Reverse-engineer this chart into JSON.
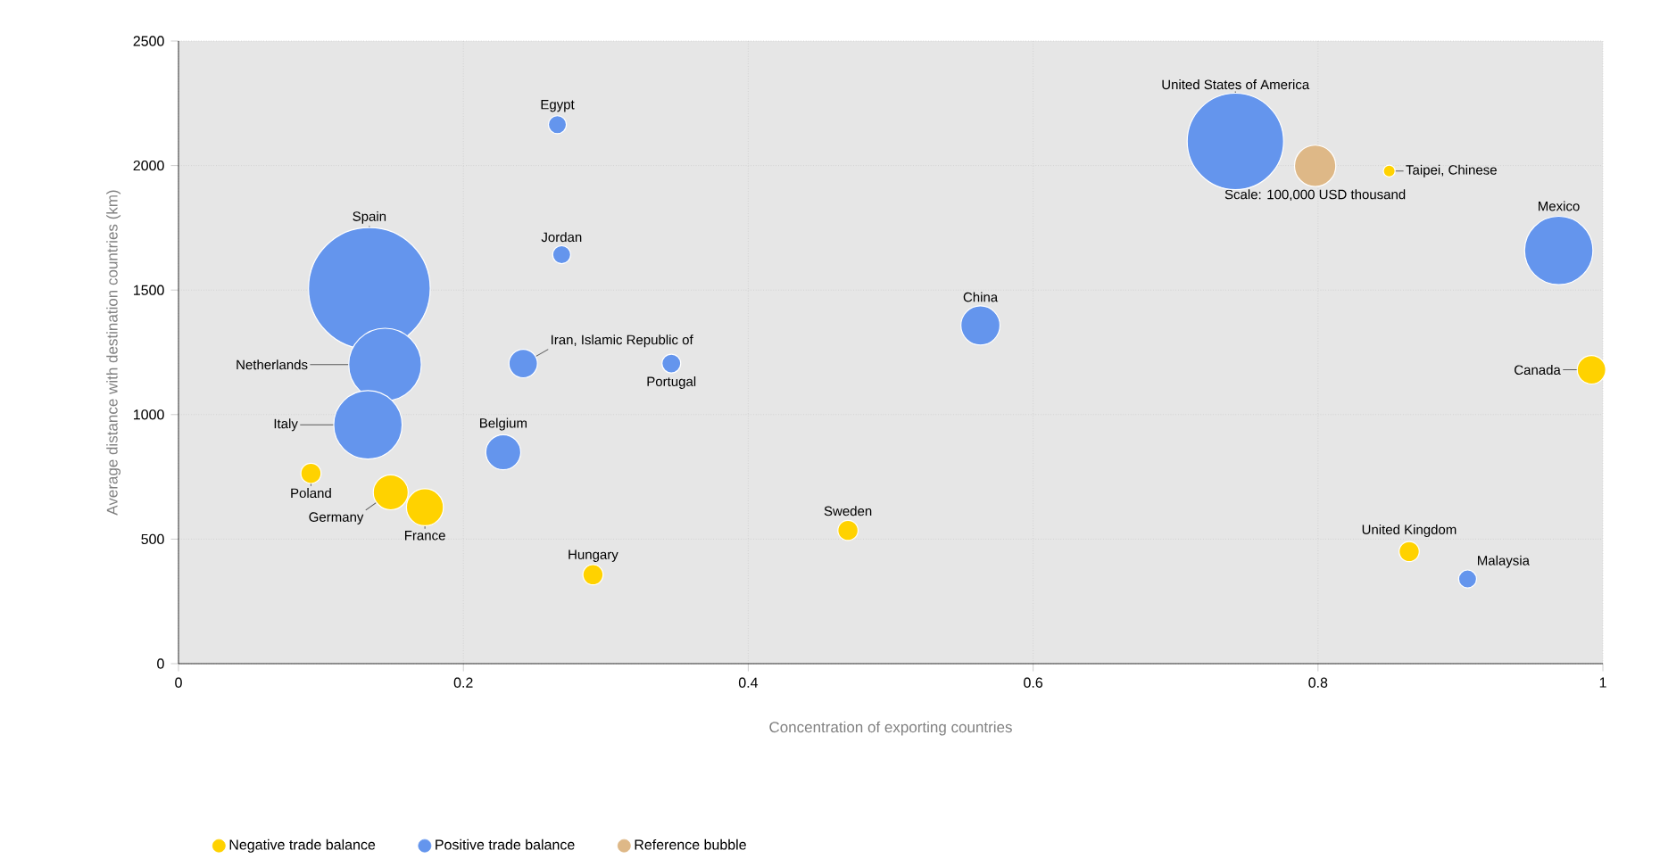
{
  "chart_data": {
    "type": "bubble",
    "xlabel": "Concentration of exporting countries",
    "ylabel": "Average distance with destination countries (km)",
    "xlim": [
      0,
      1
    ],
    "ylim": [
      0,
      2500
    ],
    "xticks": [
      0,
      0.2,
      0.4,
      0.6,
      0.8,
      1
    ],
    "yticks": [
      0,
      500,
      1000,
      1500,
      2000,
      2500
    ],
    "grid": true,
    "legend": "bottom",
    "series": [
      {
        "name": "Negative trade balance",
        "color": "#ffd200",
        "x": [
          0.173,
          0.149,
          0.992,
          0.093,
          0.291,
          0.47,
          0.864,
          0.85
        ],
        "values": [
          628,
          688,
          1180,
          764,
          357,
          535,
          450,
          1978
        ],
        "sizes": [
          0.096,
          0.086,
          0.058,
          0.03,
          0.03,
          0.03,
          0.03,
          0.011
        ]
      },
      {
        "name": "Positive trade balance",
        "color": "#6495ed",
        "x": [
          0.134,
          0.742,
          0.145,
          0.969,
          0.133,
          0.563,
          0.228,
          0.242,
          0.266,
          0.269,
          0.346,
          0.905
        ],
        "values": [
          1507,
          2097,
          1201,
          1659,
          959,
          1358,
          849,
          1205,
          2164,
          1642,
          1205,
          340
        ],
        "sizes": [
          1,
          0.63,
          0.36,
          0.32,
          0.32,
          0.107,
          0.086,
          0.058,
          0.024,
          0.024,
          0.026,
          0.024
        ]
      },
      {
        "name": "Reference bubble",
        "color": "#deb887",
        "x": [
          0.798
        ],
        "values": [
          1999
        ],
        "sizes": [
          0.119
        ]
      }
    ],
    "annotations": [
      {
        "text": "France",
        "x": 0.173,
        "y": 628
      },
      {
        "text": "Germany",
        "x": 0.149,
        "y": 688
      },
      {
        "text": "Canada",
        "x": 0.992,
        "y": 1180
      },
      {
        "text": "Poland",
        "x": 0.093,
        "y": 764
      },
      {
        "text": "Hungary",
        "x": 0.291,
        "y": 357
      },
      {
        "text": "Sweden",
        "x": 0.47,
        "y": 535
      },
      {
        "text": "United Kingdom",
        "x": 0.864,
        "y": 450
      },
      {
        "text": "Taipei, Chinese",
        "x": 0.85,
        "y": 1978
      },
      {
        "text": "Spain",
        "x": 0.134,
        "y": 1507
      },
      {
        "text": "United States of America",
        "x": 0.742,
        "y": 2097
      },
      {
        "text": "Netherlands",
        "x": 0.145,
        "y": 1201
      },
      {
        "text": "Mexico",
        "x": 0.969,
        "y": 1659
      },
      {
        "text": "Italy",
        "x": 0.133,
        "y": 959
      },
      {
        "text": "China",
        "x": 0.563,
        "y": 1358
      },
      {
        "text": "Belgium",
        "x": 0.228,
        "y": 849
      },
      {
        "text": "Iran, Islamic Republic of",
        "x": 0.242,
        "y": 1205
      },
      {
        "text": "Egypt",
        "x": 0.266,
        "y": 2164
      },
      {
        "text": "Jordan",
        "x": 0.269,
        "y": 1642
      },
      {
        "text": "Portugal",
        "x": 0.346,
        "y": 1205
      },
      {
        "text": "Malaysia",
        "x": 0.905,
        "y": 340
      },
      {
        "text": "Scale: 100,000 USD thousand",
        "x": 0.798,
        "y": 1999
      }
    ]
  }
}
